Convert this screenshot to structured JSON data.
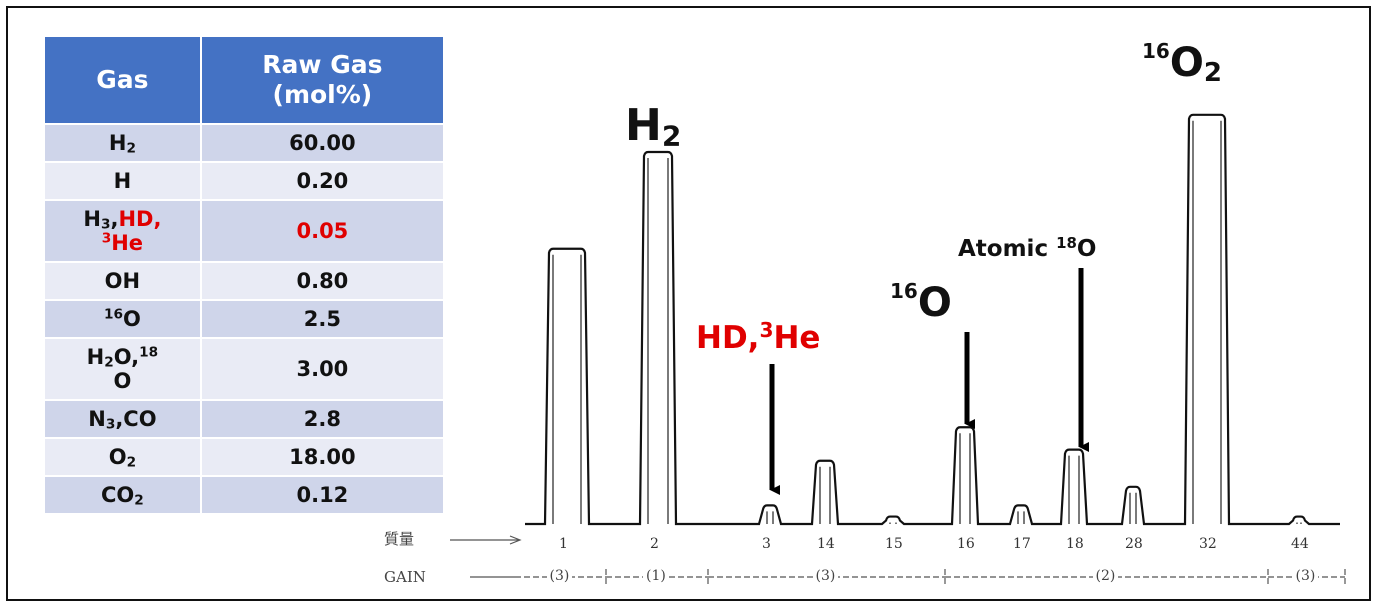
{
  "table": {
    "headers": [
      "Gas",
      "Raw Gas (mol%)"
    ],
    "rows": [
      {
        "gas_html": "H<sub>2</sub>",
        "value": "60.00",
        "highlight": false
      },
      {
        "gas_html": "H",
        "value": "0.20",
        "highlight": false
      },
      {
        "gas_html": "H<sub>3</sub>,<span class=\"red\">HD,</span><br><span class=\"red\"><sup>3</sup>He</span>",
        "value": "0.05",
        "highlight": true
      },
      {
        "gas_html": "OH",
        "value": "0.80",
        "highlight": false
      },
      {
        "gas_html": "<sup>16</sup>O",
        "value": "2.5",
        "highlight": false
      },
      {
        "gas_html": "H<sub>2</sub>O,<sup>18</sup><br>O",
        "value": "3.00",
        "highlight": false
      },
      {
        "gas_html": "N<sub>3</sub>,CO",
        "value": "2.8",
        "highlight": false
      },
      {
        "gas_html": "O<sub>2</sub>",
        "value": "18.00",
        "highlight": false
      },
      {
        "gas_html": "CO<sub>2</sub>",
        "value": "0.12",
        "highlight": false
      }
    ]
  },
  "chart_data": {
    "type": "line",
    "title": "",
    "xlabel": "",
    "ylabel": "",
    "row_label_mass": "質量",
    "row_label_gain": "GAIN",
    "categories": [
      "1",
      "2",
      "3",
      "14",
      "15",
      "16",
      "17",
      "18",
      "28",
      "32",
      "44"
    ],
    "values": [
      0.74,
      1.0,
      0.05,
      0.17,
      0.02,
      0.26,
      0.05,
      0.2,
      0.1,
      1.1,
      0.02
    ],
    "gain_groups": [
      "(3)",
      "(1)",
      "(3)",
      "(2)",
      "(3)"
    ],
    "annotations": {
      "h2": {
        "main": "H",
        "sub": "2"
      },
      "hd3he": {
        "text_html": "HD,<sup>3</sup>He"
      },
      "o16": {
        "sup": "16",
        "main": "O"
      },
      "atomic18o": {
        "text_html": "Atomic <sup>18</sup>O"
      },
      "o2": {
        "sup": "16",
        "main": "O",
        "sub": "2"
      }
    },
    "colors": {
      "highlight": "#e00000",
      "header": "#4472c4"
    }
  }
}
